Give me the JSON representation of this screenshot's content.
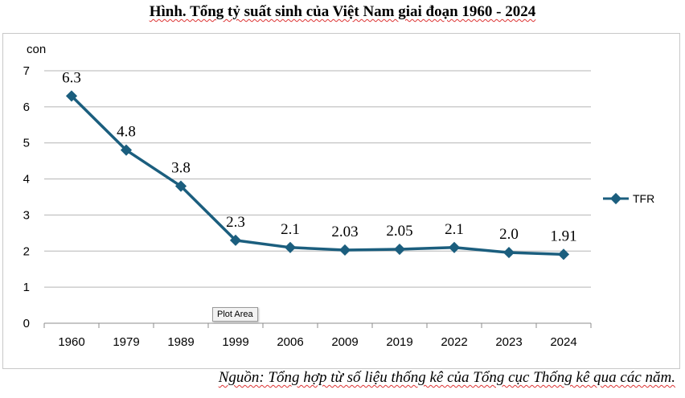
{
  "chart_data": {
    "type": "line",
    "title": "Hình. Tổng tỷ suất sinh của Việt Nam giai đoạn 1960 - 2024",
    "ylabel": "con",
    "xlabel": "",
    "categories": [
      "1960",
      "1979",
      "1989",
      "1999",
      "2006",
      "2009",
      "2019",
      "2022",
      "2023",
      "2024"
    ],
    "series": [
      {
        "name": "TFR",
        "values": [
          6.3,
          4.8,
          3.8,
          2.3,
          2.1,
          2.03,
          2.05,
          2.1,
          1.96,
          1.91
        ],
        "data_labels": [
          "6.3",
          "4.8",
          "3.8",
          "2.3",
          "2.1",
          "2.03",
          "2.05",
          "2.1",
          "2.0",
          "1.91"
        ]
      }
    ],
    "ylim": [
      0,
      7
    ],
    "yticks": [
      "0",
      "1",
      "2",
      "3",
      "4",
      "5",
      "6",
      "7"
    ],
    "grid": true,
    "legend": "right",
    "line_color": "#1b5e7e"
  },
  "source": "Nguồn: Tổng hợp từ số liệu thống kê của Tổng cục Thống kê qua các năm.",
  "tooltip": "Plot Area"
}
